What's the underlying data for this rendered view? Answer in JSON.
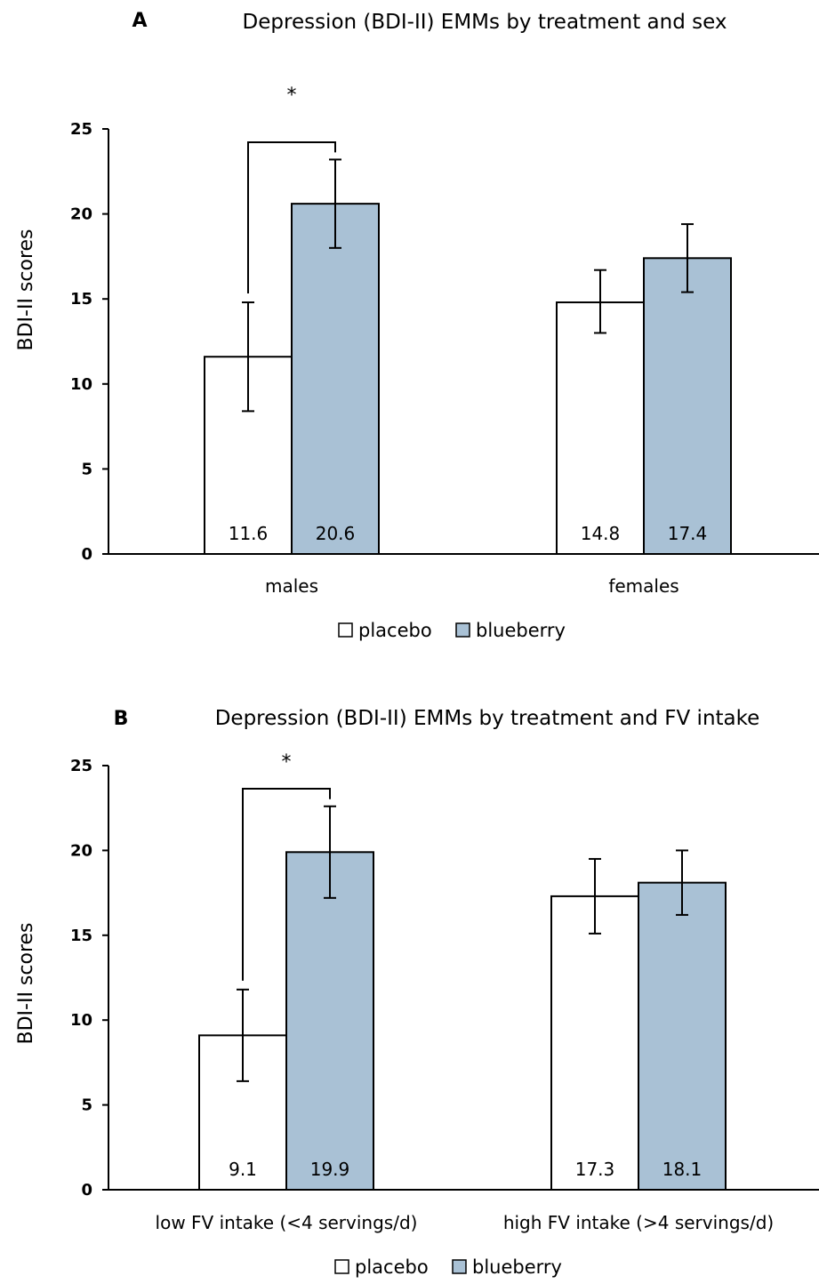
{
  "colors": {
    "placebo": "#ffffff",
    "blueberry": "#a9c1d5",
    "stroke": "#000000"
  },
  "chart_data": [
    {
      "type": "bar",
      "panel": "A",
      "title": "Depression (BDI-II) EMMs by treatment and sex",
      "ylabel": "BDI-II scores",
      "ylim": [
        0,
        25
      ],
      "yticks": [
        "0",
        "5",
        "10",
        "15",
        "20",
        "25"
      ],
      "categories": [
        "males",
        "females"
      ],
      "series": [
        {
          "name": "placebo",
          "values": [
            11.6,
            14.8
          ],
          "labels": [
            "11.6",
            "14.8"
          ],
          "err_low": [
            8.4,
            13.0
          ],
          "err_high": [
            14.8,
            16.7
          ]
        },
        {
          "name": "blueberry",
          "values": [
            20.6,
            17.4
          ],
          "labels": [
            "20.6",
            "17.4"
          ],
          "err_low": [
            18.0,
            15.4
          ],
          "err_high": [
            23.2,
            19.4
          ]
        }
      ],
      "significance": {
        "category": "males",
        "marker": "*"
      },
      "legend": [
        "placebo",
        "blueberry"
      ]
    },
    {
      "type": "bar",
      "panel": "B",
      "title": "Depression (BDI-II) EMMs by treatment and FV intake",
      "ylabel": "BDI-II scores",
      "ylim": [
        0,
        25
      ],
      "yticks": [
        "0",
        "5",
        "10",
        "15",
        "20",
        "25"
      ],
      "categories": [
        "low FV intake (<4 servings/d)",
        "high FV intake (>4 servings/d)"
      ],
      "series": [
        {
          "name": "placebo",
          "values": [
            9.1,
            17.3
          ],
          "labels": [
            "9.1",
            "17.3"
          ],
          "err_low": [
            6.4,
            15.1
          ],
          "err_high": [
            11.8,
            19.5
          ]
        },
        {
          "name": "blueberry",
          "values": [
            19.9,
            18.1
          ],
          "labels": [
            "19.9",
            "18.1"
          ],
          "err_low": [
            17.2,
            16.2
          ],
          "err_high": [
            22.6,
            20.0
          ]
        }
      ],
      "significance": {
        "category": "low FV intake (<4 servings/d)",
        "marker": "*"
      },
      "legend": [
        "placebo",
        "blueberry"
      ]
    }
  ]
}
